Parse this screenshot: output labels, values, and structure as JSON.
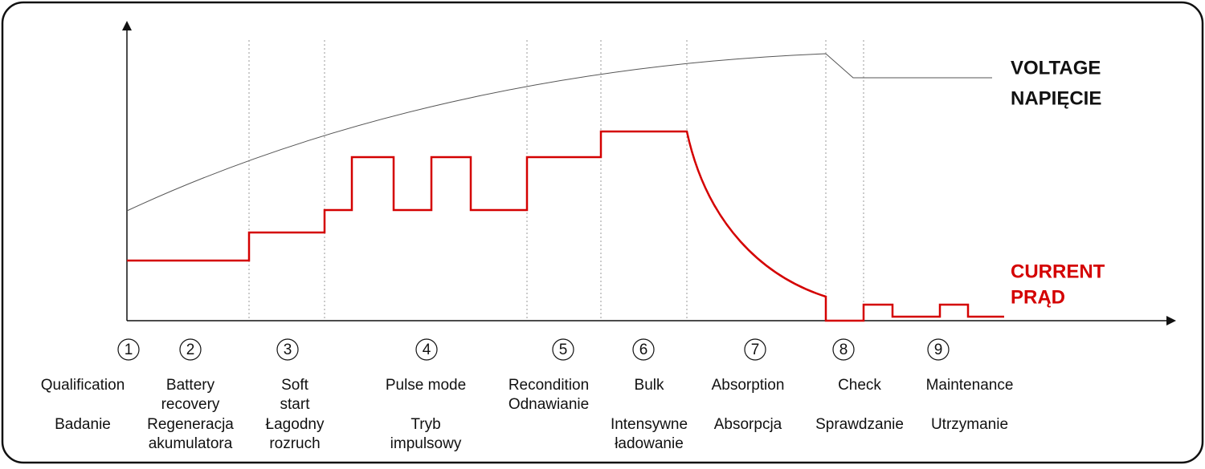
{
  "legend": {
    "voltage": [
      "VOLTAGE",
      "NAPIĘCIE"
    ],
    "current": [
      "CURRENT",
      "PRĄD"
    ]
  },
  "stages": [
    {
      "number": "1",
      "en": [
        "Qualification"
      ],
      "pl": [
        "Badanie"
      ]
    },
    {
      "number": "2",
      "en": [
        "Battery",
        "recovery"
      ],
      "pl": [
        "Regeneracja",
        "akumulatora"
      ]
    },
    {
      "number": "3",
      "en": [
        "Soft",
        "start"
      ],
      "pl": [
        "Łagodny",
        "rozruch"
      ]
    },
    {
      "number": "4",
      "en": [
        "Pulse mode"
      ],
      "pl": [
        "Tryb",
        "impulsowy"
      ]
    },
    {
      "number": "5",
      "en": [
        "Recondition"
      ],
      "pl": [
        "Odnawianie"
      ]
    },
    {
      "number": "6",
      "en": [
        "Bulk"
      ],
      "pl": [
        "Intensywne",
        "ładowanie"
      ]
    },
    {
      "number": "7",
      "en": [
        "Absorption"
      ],
      "pl": [
        "Absorpcja"
      ]
    },
    {
      "number": "8",
      "en": [
        "Check"
      ],
      "pl": [
        "Sprawdzanie"
      ]
    },
    {
      "number": "9",
      "en": [
        "Maintenance"
      ],
      "pl": [
        "Utrzymanie"
      ]
    }
  ]
}
